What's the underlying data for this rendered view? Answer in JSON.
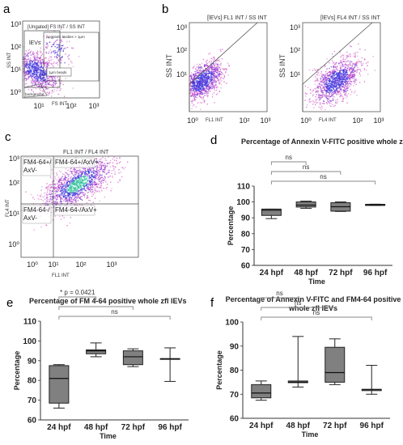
{
  "panel_labels": {
    "a": "a",
    "b": "b",
    "c": "c",
    "d": "d",
    "e": "e",
    "f": "f"
  },
  "flow": {
    "a": {
      "title": "[Ungated] FS INT / SS INT",
      "ylabel": "SS INT",
      "xlabel": "FS INT",
      "yticks": [
        "10³",
        "10²",
        "10¹",
        "10⁰"
      ],
      "xticks": [
        "10¹",
        "10²",
        "10³"
      ],
      "gates": {
        "ievs": "lEVs",
        "apoptotic": "Apoptotic Bodies > 1µm",
        "beads": "1µm beads",
        "background": "background"
      }
    },
    "b1": {
      "title": "[lEVs] FL1 INT / SS INT",
      "ylabel": "SS INT",
      "xlabel": "FL1 INT",
      "yticks": [
        "10³",
        "10²",
        "10¹"
      ],
      "xticks": [
        "10⁰",
        "10²",
        "10³"
      ]
    },
    "b2": {
      "title": "[lEVs] FL4 INT / SS INT",
      "ylabel": "SS INT",
      "xlabel": "FL4 INT",
      "yticks": [
        "10³",
        "10²",
        "10¹"
      ],
      "xticks": [
        "10⁰",
        "10²",
        "10³"
      ]
    },
    "c": {
      "title": "FL1 INT / FL4 INT",
      "ylabel": "FL4 INT",
      "xlabel": "FL1 INT",
      "yticks": [
        "10³",
        "10²",
        "10¹",
        "10⁰"
      ],
      "xticks": [
        "10⁰",
        "10¹",
        "10²",
        "10³"
      ],
      "quadrants": {
        "ul": "FM4-64+/\nAxV-",
        "ur": "FM4-64+/AxV+",
        "ll": "FM4-64-/\nAxV-",
        "lr": "FM4-64-/AxV+"
      }
    }
  },
  "chart_data": [
    {
      "id": "d",
      "type": "box",
      "title": "Percentage of Annexin V-FITC positive whole zfl lEVs",
      "xlabel": "Time",
      "ylabel": "Percentage",
      "ylim": [
        60,
        110
      ],
      "yticks": [
        60,
        70,
        80,
        90,
        100,
        110
      ],
      "categories": [
        "24 hpf",
        "48 hpf",
        "72 hpf",
        "96 hpf"
      ],
      "boxes": [
        {
          "min": 89.5,
          "q1": 91.5,
          "median": 94.8,
          "q3": 95.5,
          "max": 95.5
        },
        {
          "min": 96,
          "q1": 96.8,
          "median": 98,
          "q3": 100,
          "max": 100.5
        },
        {
          "min": 94,
          "q1": 94.2,
          "median": 97,
          "q3": 99.5,
          "max": 100
        },
        {
          "min": 97.8,
          "q1": 97.8,
          "median": 98.2,
          "q3": 98.5,
          "max": 98.6
        }
      ],
      "comparisons": [
        {
          "from": 0,
          "to": 1,
          "label": "ns"
        },
        {
          "from": 0,
          "to": 2,
          "label": "ns"
        },
        {
          "from": 0,
          "to": 3,
          "label": "ns"
        }
      ]
    },
    {
      "id": "e",
      "type": "box",
      "title": "Percentage of FM 4-64 positive whole zfl lEVs",
      "xlabel": "Time",
      "ylabel": "Percentage",
      "ylim": [
        60,
        110
      ],
      "yticks": [
        60,
        70,
        80,
        90,
        100,
        110
      ],
      "categories": [
        "24 hpf",
        "48 hpf",
        "72 hpf",
        "96 hpf"
      ],
      "boxes": [
        {
          "min": 66,
          "q1": 68.5,
          "median": 81,
          "q3": 87.5,
          "max": 88
        },
        {
          "min": 92,
          "q1": 93.5,
          "median": 95,
          "q3": 95.5,
          "max": 99
        },
        {
          "min": 87,
          "q1": 88,
          "median": 92,
          "q3": 95,
          "max": 96
        },
        {
          "min": 79.5,
          "q1": 91,
          "median": 91,
          "q3": 91,
          "max": 96.5
        }
      ],
      "comparisons": [
        {
          "from": 0,
          "to": 1,
          "label": "*  p = 0.0421"
        },
        {
          "from": 0,
          "to": 2,
          "label": ""
        },
        {
          "from": 0,
          "to": 3,
          "label": "ns"
        }
      ]
    },
    {
      "id": "f",
      "type": "box",
      "title": "Percentage of Annexin V-FITC and FM4-64  positive whole zfl lEVs",
      "title_lines": [
        "Percentage of Annexin V-FITC and FM4-64  positive",
        "whole zfl lEVs"
      ],
      "xlabel": "Time",
      "ylabel": "Percentage",
      "ylim": [
        60,
        100
      ],
      "yticks": [
        60,
        70,
        80,
        90,
        100
      ],
      "categories": [
        "24 hpf",
        "48 hpf",
        "72 hpf",
        "96 hpf"
      ],
      "boxes": [
        {
          "min": 67.5,
          "q1": 68.5,
          "median": 70.5,
          "q3": 74,
          "max": 75.5
        },
        {
          "min": 73,
          "q1": 74.8,
          "median": 75,
          "q3": 75.5,
          "max": 94
        },
        {
          "min": 74,
          "q1": 75,
          "median": 79,
          "q3": 89.5,
          "max": 93
        },
        {
          "min": 70,
          "q1": 71.5,
          "median": 72,
          "q3": 72,
          "max": 82
        }
      ],
      "comparisons": [
        {
          "from": 0,
          "to": 1,
          "label": "ns"
        },
        {
          "from": 0,
          "to": 2,
          "label": "ns"
        },
        {
          "from": 0,
          "to": 3,
          "label": "ns"
        }
      ]
    }
  ]
}
